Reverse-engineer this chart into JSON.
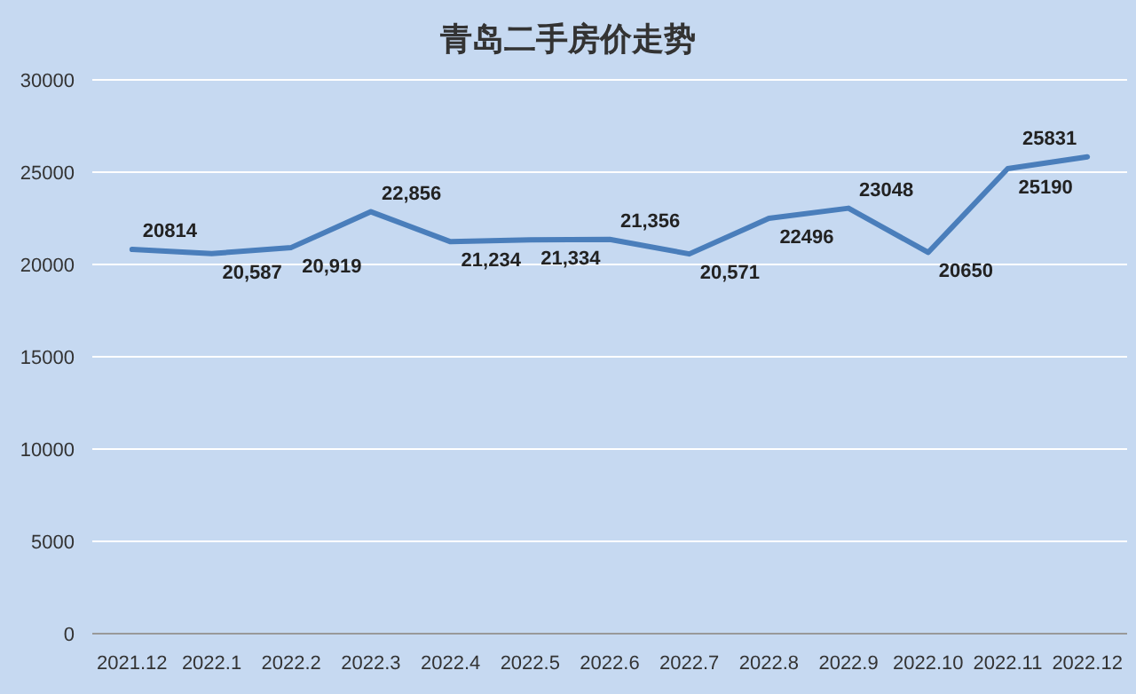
{
  "chart_data": {
    "type": "line",
    "title": "青岛二手房价走势",
    "categories": [
      "2021.12",
      "2022.1",
      "2022.2",
      "2022.3",
      "2022.4",
      "2022.5",
      "2022.6",
      "2022.7",
      "2022.8",
      "2022.9",
      "2022.10",
      "2022.11",
      "2022.12"
    ],
    "values": [
      20814,
      20587,
      20919,
      22856,
      21234,
      21334,
      21356,
      20571,
      22496,
      23048,
      20650,
      25190,
      25831
    ],
    "value_labels": [
      "20814",
      "20,587",
      "20,919",
      "22,856",
      "21,234",
      "21,334",
      "21,356",
      "20,571",
      "22496",
      "23048",
      "20650",
      "25190",
      "25831"
    ],
    "color": "#4a7ebb",
    "ylim": [
      0,
      30000
    ],
    "yticks": [
      0,
      5000,
      10000,
      15000,
      20000,
      25000,
      30000
    ],
    "grid": "y"
  }
}
